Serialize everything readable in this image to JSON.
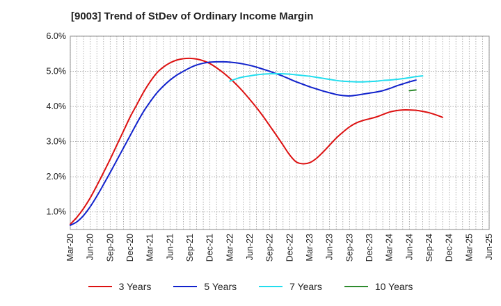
{
  "chart_data": {
    "type": "line",
    "title": "[9003]  Trend of StDev of Ordinary Income Margin",
    "xlabel": "",
    "ylabel": "",
    "x_ticks": [
      "Mar-20",
      "Jun-20",
      "Sep-20",
      "Dec-20",
      "Mar-21",
      "Jun-21",
      "Sep-21",
      "Dec-21",
      "Mar-22",
      "Jun-22",
      "Sep-22",
      "Dec-22",
      "Mar-23",
      "Jun-23",
      "Sep-23",
      "Dec-23",
      "Mar-24",
      "Jun-24",
      "Sep-24",
      "Dec-24",
      "Mar-25",
      "Jun-25"
    ],
    "y_ticks": [
      "1.0%",
      "2.0%",
      "3.0%",
      "4.0%",
      "5.0%",
      "6.0%"
    ],
    "ylim": [
      0.5,
      6.0
    ],
    "grid": true,
    "legend_position": "bottom",
    "series": [
      {
        "name": "3 Years",
        "color": "#dd1111",
        "points": [
          [
            "Mar-20",
            0.65
          ],
          [
            "Apr-20",
            0.85
          ],
          [
            "May-20",
            1.1
          ],
          [
            "Jun-20",
            1.4
          ],
          [
            "Jul-20",
            1.75
          ],
          [
            "Aug-20",
            2.12
          ],
          [
            "Sep-20",
            2.5
          ],
          [
            "Oct-20",
            2.9
          ],
          [
            "Nov-20",
            3.3
          ],
          [
            "Dec-20",
            3.7
          ],
          [
            "Jan-21",
            4.05
          ],
          [
            "Feb-21",
            4.4
          ],
          [
            "Mar-21",
            4.7
          ],
          [
            "Apr-21",
            4.95
          ],
          [
            "May-21",
            5.12
          ],
          [
            "Jun-21",
            5.24
          ],
          [
            "Jul-21",
            5.32
          ],
          [
            "Aug-21",
            5.36
          ],
          [
            "Sep-21",
            5.37
          ],
          [
            "Oct-21",
            5.35
          ],
          [
            "Nov-21",
            5.3
          ],
          [
            "Dec-21",
            5.22
          ],
          [
            "Jan-22",
            5.1
          ],
          [
            "Feb-22",
            4.96
          ],
          [
            "Mar-22",
            4.8
          ],
          [
            "Apr-22",
            4.62
          ],
          [
            "May-22",
            4.42
          ],
          [
            "Jun-22",
            4.2
          ],
          [
            "Jul-22",
            3.97
          ],
          [
            "Aug-22",
            3.72
          ],
          [
            "Sep-22",
            3.45
          ],
          [
            "Oct-22",
            3.18
          ],
          [
            "Nov-22",
            2.9
          ],
          [
            "Dec-22",
            2.62
          ],
          [
            "Jan-23",
            2.42
          ],
          [
            "Feb-23",
            2.37
          ],
          [
            "Mar-23",
            2.4
          ],
          [
            "Apr-23",
            2.52
          ],
          [
            "May-23",
            2.7
          ],
          [
            "Jun-23",
            2.9
          ],
          [
            "Jul-23",
            3.1
          ],
          [
            "Aug-23",
            3.27
          ],
          [
            "Sep-23",
            3.42
          ],
          [
            "Oct-23",
            3.53
          ],
          [
            "Nov-23",
            3.6
          ],
          [
            "Dec-23",
            3.65
          ],
          [
            "Jan-24",
            3.7
          ],
          [
            "Feb-24",
            3.77
          ],
          [
            "Mar-24",
            3.84
          ],
          [
            "Apr-24",
            3.88
          ],
          [
            "May-24",
            3.9
          ],
          [
            "Jun-24",
            3.9
          ],
          [
            "Jul-24",
            3.89
          ],
          [
            "Aug-24",
            3.86
          ],
          [
            "Sep-24",
            3.82
          ],
          [
            "Oct-24",
            3.76
          ],
          [
            "Nov-24",
            3.69
          ]
        ]
      },
      {
        "name": "5 Years",
        "color": "#1122cc",
        "points": [
          [
            "Mar-20",
            0.62
          ],
          [
            "Apr-20",
            0.72
          ],
          [
            "May-20",
            0.9
          ],
          [
            "Jun-20",
            1.15
          ],
          [
            "Jul-20",
            1.45
          ],
          [
            "Aug-20",
            1.78
          ],
          [
            "Sep-20",
            2.12
          ],
          [
            "Oct-20",
            2.47
          ],
          [
            "Nov-20",
            2.82
          ],
          [
            "Dec-20",
            3.17
          ],
          [
            "Jan-21",
            3.52
          ],
          [
            "Feb-21",
            3.85
          ],
          [
            "Mar-21",
            4.13
          ],
          [
            "Apr-21",
            4.38
          ],
          [
            "May-21",
            4.58
          ],
          [
            "Jun-21",
            4.75
          ],
          [
            "Jul-21",
            4.89
          ],
          [
            "Aug-21",
            5.0
          ],
          [
            "Sep-21",
            5.1
          ],
          [
            "Oct-21",
            5.18
          ],
          [
            "Nov-21",
            5.23
          ],
          [
            "Dec-21",
            5.26
          ],
          [
            "Jan-22",
            5.27
          ],
          [
            "Feb-22",
            5.27
          ],
          [
            "Mar-22",
            5.26
          ],
          [
            "Apr-22",
            5.24
          ],
          [
            "May-22",
            5.21
          ],
          [
            "Jun-22",
            5.17
          ],
          [
            "Jul-22",
            5.12
          ],
          [
            "Aug-22",
            5.06
          ],
          [
            "Sep-22",
            5.0
          ],
          [
            "Oct-22",
            4.93
          ],
          [
            "Nov-22",
            4.86
          ],
          [
            "Dec-22",
            4.78
          ],
          [
            "Jan-23",
            4.7
          ],
          [
            "Feb-23",
            4.63
          ],
          [
            "Mar-23",
            4.56
          ],
          [
            "Apr-23",
            4.5
          ],
          [
            "May-23",
            4.44
          ],
          [
            "Jun-23",
            4.39
          ],
          [
            "Jul-23",
            4.34
          ],
          [
            "Aug-23",
            4.31
          ],
          [
            "Sep-23",
            4.3
          ],
          [
            "Oct-23",
            4.32
          ],
          [
            "Nov-23",
            4.35
          ],
          [
            "Dec-23",
            4.38
          ],
          [
            "Jan-24",
            4.41
          ],
          [
            "Feb-24",
            4.45
          ],
          [
            "Mar-24",
            4.51
          ],
          [
            "Apr-24",
            4.58
          ],
          [
            "May-24",
            4.64
          ],
          [
            "Jun-24",
            4.7
          ],
          [
            "Jul-24",
            4.75
          ]
        ]
      },
      {
        "name": "7 Years",
        "color": "#22ddee",
        "points": [
          [
            "Mar-22",
            4.72
          ],
          [
            "Apr-22",
            4.79
          ],
          [
            "May-22",
            4.84
          ],
          [
            "Jun-22",
            4.87
          ],
          [
            "Jul-22",
            4.9
          ],
          [
            "Aug-22",
            4.92
          ],
          [
            "Sep-22",
            4.93
          ],
          [
            "Oct-22",
            4.93
          ],
          [
            "Nov-22",
            4.93
          ],
          [
            "Dec-22",
            4.92
          ],
          [
            "Jan-23",
            4.9
          ],
          [
            "Feb-23",
            4.88
          ],
          [
            "Mar-23",
            4.86
          ],
          [
            "Apr-23",
            4.83
          ],
          [
            "May-23",
            4.8
          ],
          [
            "Jun-23",
            4.77
          ],
          [
            "Jul-23",
            4.74
          ],
          [
            "Aug-23",
            4.72
          ],
          [
            "Sep-23",
            4.71
          ],
          [
            "Oct-23",
            4.7
          ],
          [
            "Nov-23",
            4.7
          ],
          [
            "Dec-23",
            4.71
          ],
          [
            "Jan-24",
            4.72
          ],
          [
            "Feb-24",
            4.74
          ],
          [
            "Mar-24",
            4.75
          ],
          [
            "Apr-24",
            4.77
          ],
          [
            "May-24",
            4.79
          ],
          [
            "Jun-24",
            4.82
          ],
          [
            "Jul-24",
            4.85
          ],
          [
            "Aug-24",
            4.87
          ]
        ]
      },
      {
        "name": "10 Years",
        "color": "#2e8b2e",
        "points": [
          [
            "Jun-24",
            4.45
          ],
          [
            "Jul-24",
            4.47
          ]
        ]
      }
    ]
  }
}
